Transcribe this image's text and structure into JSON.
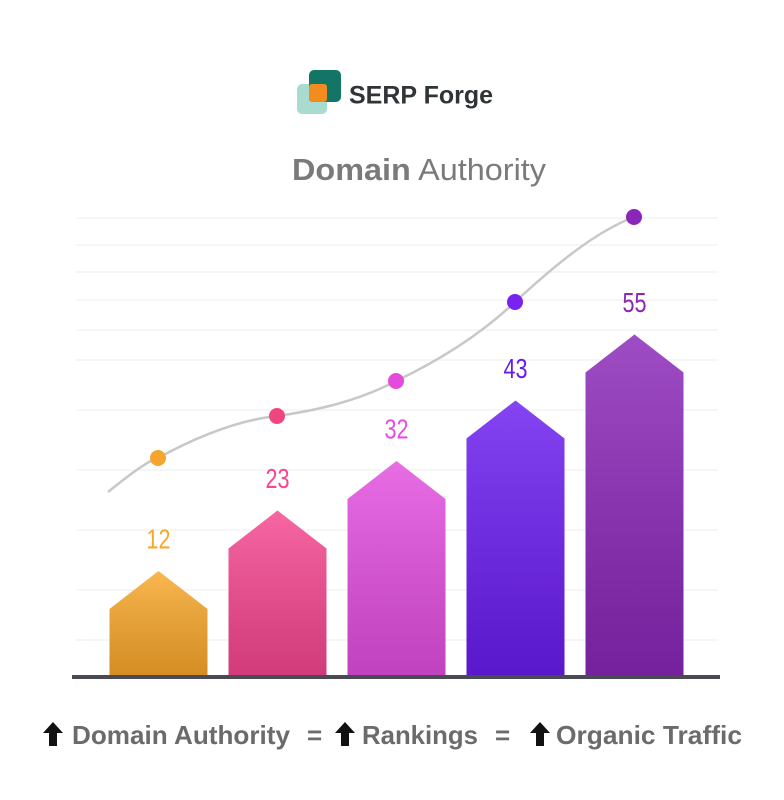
{
  "brand": "SERP Forge",
  "chart_data": {
    "type": "bar",
    "title_strong": "Domain",
    "title_rest": "Authority",
    "categories": [
      null,
      null,
      null,
      null,
      null
    ],
    "values": [
      12,
      23,
      32,
      43,
      55
    ],
    "colors": [
      "#f9a72a",
      "#f6468f",
      "#e34ee0",
      "#6a1cf0",
      "#8a26b8"
    ],
    "ylim": [
      0,
      60
    ]
  },
  "footer": {
    "items": [
      "Domain Authority",
      "Rankings",
      "Organic Traffic"
    ],
    "separator": "="
  }
}
